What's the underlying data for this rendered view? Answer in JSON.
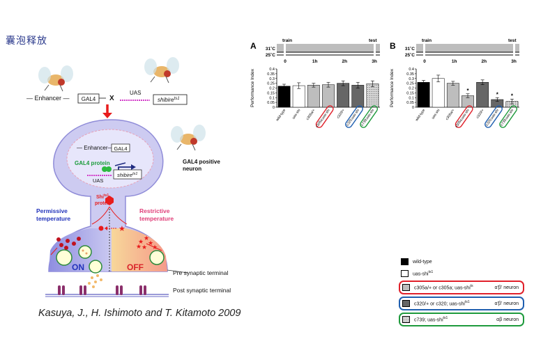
{
  "slide": {
    "title": "囊泡释放",
    "citation": "Kasuya, J., H. Ishimoto and T. Kitamoto 2009"
  },
  "diagram": {
    "enhancer_label": "— Enhancer —",
    "gal4_label": "GAL4",
    "cross_label": "X",
    "uas_label": "UAS",
    "shibire_label": "shibire",
    "shibire_sup": "ts1",
    "inner_enhancer": "Enhancer",
    "inner_gal4": "GAL4",
    "gal4_protein": "GAL4 protein",
    "inner_uas": "UAS",
    "inner_shibire": "shibire",
    "shi_protein_1": "Shi",
    "shi_protein_sup": "ts1",
    "shi_protein_2": "protein",
    "gal4_positive_1": "GAL4 positive",
    "gal4_positive_2": "neuron",
    "permissive_1": "Permissive",
    "permissive_2": "temperature",
    "restrictive_1": "Restrictive",
    "restrictive_2": "temperature",
    "on_label": "ON",
    "off_label": "OFF",
    "pre_synaptic": "Pre synaptic terminal",
    "post_synaptic": "Post synaptic terminal"
  },
  "chart_data": [
    {
      "type": "bar",
      "panel": "A",
      "timeline": {
        "top_temp": "31˚C",
        "bottom_temp": "25˚C",
        "train": "train",
        "test": "test",
        "ticks": [
          "0",
          "1h",
          "2h",
          "3h"
        ]
      },
      "ylabel": "Performance Index",
      "ylim": [
        0,
        0.4
      ],
      "yticks": [
        "0",
        "0.05",
        "0.1",
        "0.15",
        "0.2",
        "0.25",
        "0.3",
        "0.35",
        "0.4"
      ],
      "categories": [
        "wild-type",
        "uas-shi",
        "c305a/+",
        "c305a;uas-shi",
        "c320/+",
        "c320;uas-shi",
        "c739;uas-shi"
      ],
      "values": [
        0.22,
        0.225,
        0.23,
        0.235,
        0.25,
        0.23,
        0.245
      ],
      "errors": [
        0.02,
        0.03,
        0.02,
        0.025,
        0.025,
        0.03,
        0.03
      ],
      "significant": [
        false,
        false,
        false,
        false,
        false,
        false,
        false
      ]
    },
    {
      "type": "bar",
      "panel": "B",
      "timeline": {
        "top_temp": "31˚C",
        "bottom_temp": "25˚C",
        "train": "train",
        "test": "test",
        "ticks": [
          "0",
          "1h",
          "2h",
          "3h"
        ]
      },
      "ylabel": "Performance Index",
      "ylim": [
        0,
        0.4
      ],
      "yticks": [
        "0",
        "0.05",
        "0.1",
        "0.15",
        "0.2",
        "0.25",
        "0.3",
        "0.35",
        "0.4"
      ],
      "categories": [
        "wild-type",
        "uas-shi",
        "c305a/+",
        "c305a;uas-shi",
        "c320/+",
        "c320;uas-shi",
        "c739;uas-shi"
      ],
      "values": [
        0.26,
        0.3,
        0.25,
        0.12,
        0.26,
        0.08,
        0.06
      ],
      "errors": [
        0.02,
        0.035,
        0.02,
        0.02,
        0.025,
        0.02,
        0.025
      ],
      "significant": [
        false,
        false,
        false,
        true,
        false,
        true,
        true
      ],
      "sig_mark": "*"
    }
  ],
  "legend": {
    "items": [
      {
        "label": "wild-type",
        "neuron": "",
        "color": "#000000",
        "pattern": "solid",
        "box": ""
      },
      {
        "label": "uas-shi",
        "sup": "ts1",
        "neuron": "",
        "color": "#ffffff",
        "pattern": "solid",
        "box": ""
      },
      {
        "label": "c305a/+ or c305a; uas-shi",
        "sup": "ts",
        "neuron": "α′β′ neuron",
        "color": "#bdbdbd",
        "pattern": "solid",
        "box": "#e0202a"
      },
      {
        "label": "c320/+ or c320; uas-shi",
        "sup": "ts1",
        "neuron": "α′β′ neuron",
        "color": "#666666",
        "pattern": "solid",
        "box": "#1f5fb0"
      },
      {
        "label": "c739; uas-shi",
        "sup": "ts1",
        "neuron": "αβ neuron",
        "color": "#cfcfcf",
        "pattern": "dots",
        "box": "#1e9a3c"
      }
    ]
  },
  "colors": {
    "title_blue": "#2b3a8c",
    "neuron_fill": "#c9c7ef",
    "permissive_blue": "#2233bb",
    "restrictive_pink": "#e0407a",
    "arrow_red": "#e81c1c",
    "post_purple": "#8b2f6b",
    "box_red": "#e0202a",
    "box_blue": "#1f5fb0",
    "box_green": "#1e9a3c"
  }
}
